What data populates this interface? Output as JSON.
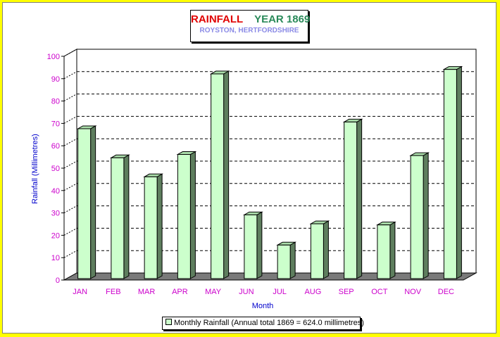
{
  "chart_data": {
    "type": "bar",
    "title": "RAINFALL",
    "title_year": "YEAR 1869",
    "subtitle": "ROYSTON, HERTFORDSHIRE",
    "xlabel": "Month",
    "ylabel": "Rainfall (Millimetres)",
    "ylim": [
      0,
      100
    ],
    "yticks": [
      "0",
      "10",
      "20",
      "30",
      "40",
      "50",
      "60",
      "70",
      "80",
      "90",
      "100"
    ],
    "categories": [
      "JAN",
      "FEB",
      "MAR",
      "APR",
      "MAY",
      "JUN",
      "JUL",
      "AUG",
      "SEP",
      "OCT",
      "NOV",
      "DEC"
    ],
    "series": [
      {
        "name": "Monthly Rainfall (Annual total 1869 = 624.0 millimetres)",
        "values": [
          67,
          54,
          45.5,
          55.5,
          91.5,
          28.5,
          15,
          24.5,
          70,
          24,
          55,
          93.5
        ]
      }
    ],
    "grid": "dashed horizontal",
    "legend_position": "bottom-center",
    "colors": {
      "background": "#ffff00",
      "bar_front": "#ccffcc",
      "bar_side": "#5e7e5e",
      "bar_top": "#aaddaa",
      "floor": "#7a7a7a",
      "title_main": "#e00000",
      "title_year": "#2a8a5a",
      "subtitle": "#8a8ae6",
      "tick_labels": "#cc00cc",
      "axis_titles": "#0000cc"
    }
  }
}
